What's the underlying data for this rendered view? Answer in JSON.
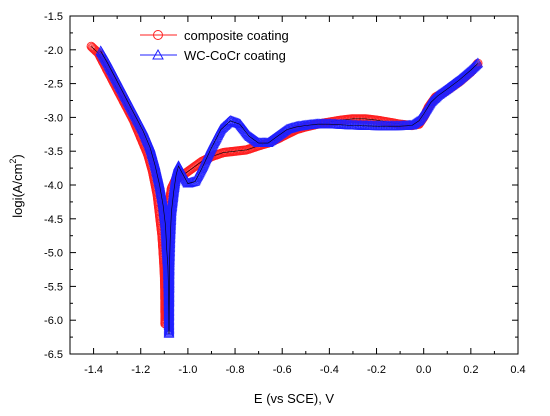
{
  "chart_data": {
    "type": "scatter",
    "title": "",
    "xlabel": "E (vs SCE), V",
    "ylabel_main": "logi(A/cm",
    "ylabel_sup": "2",
    "ylabel_tail": ")",
    "xlim": [
      -1.5,
      0.4
    ],
    "ylim": [
      -6.5,
      -1.5
    ],
    "xticks": [
      -1.4,
      -1.2,
      -1.0,
      -0.8,
      -0.6,
      -0.4,
      -0.2,
      0.0,
      0.2,
      0.4
    ],
    "xtick_labels": [
      "-1.4",
      "-1.2",
      "-1.0",
      "-0.8",
      "-0.6",
      "-0.4",
      "-0.2",
      "0.0",
      "0.2",
      "0.4"
    ],
    "yticks": [
      -1.5,
      -2.0,
      -2.5,
      -3.0,
      -3.5,
      -4.0,
      -4.5,
      -5.0,
      -5.5,
      -6.0,
      -6.5
    ],
    "ytick_labels": [
      "-1.5",
      "-2.0",
      "-2.5",
      "-3.0",
      "-3.5",
      "-4.0",
      "-4.5",
      "-5.0",
      "-5.5",
      "-6.0",
      "-6.5"
    ],
    "legend_position": "top-left",
    "grid": false,
    "series": [
      {
        "name": "composite coating",
        "color": "#ff2020",
        "marker": "circle",
        "branches": [
          [
            [
              -1.41,
              -1.95
            ],
            [
              -1.38,
              -2.05
            ],
            [
              -1.35,
              -2.25
            ],
            [
              -1.32,
              -2.45
            ],
            [
              -1.29,
              -2.65
            ],
            [
              -1.26,
              -2.85
            ],
            [
              -1.23,
              -3.05
            ],
            [
              -1.2,
              -3.3
            ],
            [
              -1.17,
              -3.55
            ],
            [
              -1.15,
              -3.8
            ],
            [
              -1.13,
              -4.15
            ],
            [
              -1.12,
              -4.45
            ],
            [
              -1.11,
              -4.75
            ],
            [
              -1.105,
              -5.0
            ],
            [
              -1.1,
              -5.3
            ],
            [
              -1.098,
              -5.55
            ],
            [
              -1.097,
              -6.05
            ]
          ],
          [
            [
              -1.097,
              -6.05
            ],
            [
              -1.095,
              -5.4
            ],
            [
              -1.09,
              -5.0
            ],
            [
              -1.085,
              -4.6
            ],
            [
              -1.08,
              -4.3
            ],
            [
              -1.07,
              -4.05
            ],
            [
              -1.05,
              -3.9
            ],
            [
              -1.02,
              -3.85
            ],
            [
              -0.98,
              -3.75
            ],
            [
              -0.94,
              -3.65
            ],
            [
              -0.9,
              -3.58
            ],
            [
              -0.85,
              -3.52
            ],
            [
              -0.8,
              -3.5
            ],
            [
              -0.75,
              -3.48
            ],
            [
              -0.7,
              -3.42
            ],
            [
              -0.66,
              -3.38
            ],
            [
              -0.62,
              -3.32
            ],
            [
              -0.58,
              -3.25
            ],
            [
              -0.54,
              -3.18
            ],
            [
              -0.5,
              -3.14
            ],
            [
              -0.45,
              -3.1
            ],
            [
              -0.4,
              -3.07
            ],
            [
              -0.35,
              -3.04
            ],
            [
              -0.3,
              -3.02
            ],
            [
              -0.25,
              -3.02
            ],
            [
              -0.2,
              -3.04
            ],
            [
              -0.15,
              -3.07
            ],
            [
              -0.1,
              -3.1
            ],
            [
              -0.05,
              -3.12
            ],
            [
              -0.02,
              -3.1
            ],
            [
              0.0,
              -3.0
            ],
            [
              0.02,
              -2.85
            ],
            [
              0.05,
              -2.7
            ],
            [
              0.1,
              -2.6
            ],
            [
              0.15,
              -2.48
            ],
            [
              0.2,
              -2.33
            ],
            [
              0.23,
              -2.2
            ]
          ]
        ]
      },
      {
        "name": "WC-CoCr coating",
        "color": "#2020ff",
        "marker": "triangle",
        "branches": [
          [
            [
              -1.37,
              -2.02
            ],
            [
              -1.34,
              -2.2
            ],
            [
              -1.31,
              -2.4
            ],
            [
              -1.28,
              -2.6
            ],
            [
              -1.25,
              -2.8
            ],
            [
              -1.22,
              -3.0
            ],
            [
              -1.19,
              -3.2
            ],
            [
              -1.16,
              -3.45
            ],
            [
              -1.14,
              -3.7
            ],
            [
              -1.12,
              -4.0
            ],
            [
              -1.105,
              -4.3
            ],
            [
              -1.095,
              -4.6
            ],
            [
              -1.09,
              -4.95
            ],
            [
              -1.085,
              -5.2
            ],
            [
              -1.082,
              -5.6
            ],
            [
              -1.08,
              -6.2
            ]
          ],
          [
            [
              -1.08,
              -6.2
            ],
            [
              -1.078,
              -5.2
            ],
            [
              -1.075,
              -4.8
            ],
            [
              -1.07,
              -4.4
            ],
            [
              -1.06,
              -4.1
            ],
            [
              -1.05,
              -3.85
            ],
            [
              -1.04,
              -3.72
            ],
            [
              -1.02,
              -3.85
            ],
            [
              -1.0,
              -3.98
            ],
            [
              -0.97,
              -3.95
            ],
            [
              -0.94,
              -3.75
            ],
            [
              -0.9,
              -3.45
            ],
            [
              -0.86,
              -3.18
            ],
            [
              -0.82,
              -3.05
            ],
            [
              -0.78,
              -3.1
            ],
            [
              -0.74,
              -3.28
            ],
            [
              -0.7,
              -3.38
            ],
            [
              -0.66,
              -3.38
            ],
            [
              -0.62,
              -3.28
            ],
            [
              -0.58,
              -3.18
            ],
            [
              -0.54,
              -3.14
            ],
            [
              -0.5,
              -3.12
            ],
            [
              -0.45,
              -3.1
            ],
            [
              -0.4,
              -3.1
            ],
            [
              -0.3,
              -3.12
            ],
            [
              -0.2,
              -3.13
            ],
            [
              -0.1,
              -3.13
            ],
            [
              -0.05,
              -3.12
            ],
            [
              -0.02,
              -3.05
            ],
            [
              0.0,
              -2.95
            ],
            [
              0.03,
              -2.78
            ],
            [
              0.06,
              -2.68
            ],
            [
              0.1,
              -2.58
            ],
            [
              0.15,
              -2.45
            ],
            [
              0.2,
              -2.3
            ],
            [
              0.23,
              -2.2
            ]
          ]
        ]
      }
    ]
  }
}
